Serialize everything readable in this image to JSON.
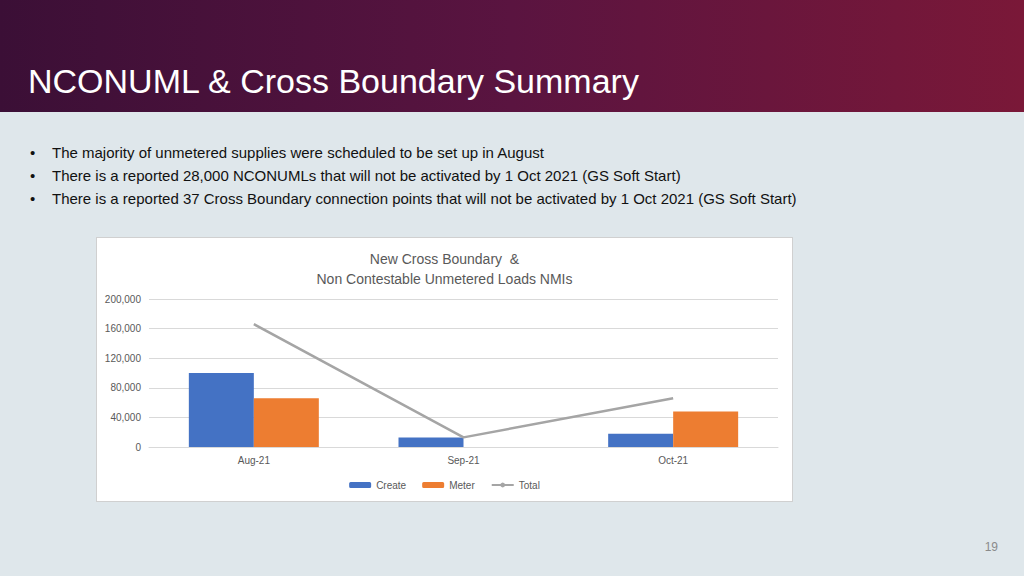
{
  "slide": {
    "title": "NCONUML & Cross Boundary Summary",
    "bullets": [
      "The majority of unmetered supplies were scheduled to be set up in August",
      "There is a reported 28,000 NCONUMLs that will not be activated by 1 Oct 2021 (GS Soft Start)",
      "There is a reported 37 Cross Boundary connection points that will not be activated by 1 Oct 2021 (GS Soft Start)"
    ],
    "page_number": 19
  },
  "chart_data": {
    "type": "bar",
    "title": "New Cross Boundary  &\nNon Contestable Unmetered Loads NMIs",
    "categories": [
      "Aug-21",
      "Sep-21",
      "Oct-21"
    ],
    "series": [
      {
        "name": "Create",
        "type": "bar",
        "color": "#4472c4",
        "values": [
          100000,
          13000,
          18000
        ]
      },
      {
        "name": "Meter",
        "type": "bar",
        "color": "#ed7d31",
        "values": [
          66000,
          0,
          48000
        ]
      },
      {
        "name": "Total",
        "type": "line",
        "color": "#a5a5a5",
        "marker": "none",
        "values": [
          166000,
          13000,
          66000
        ]
      }
    ],
    "ylim": [
      0,
      200000
    ],
    "yticks": [
      0,
      {
        "value": 40000,
        "label": "40,000"
      },
      {
        "value": 80000,
        "label": "80,000"
      },
      {
        "value": 120000,
        "label": "120,000"
      },
      {
        "value": 160000,
        "label": "160,000"
      },
      {
        "value": 200000,
        "label": "200,000"
      }
    ],
    "grid": true,
    "legend": "bottom"
  }
}
